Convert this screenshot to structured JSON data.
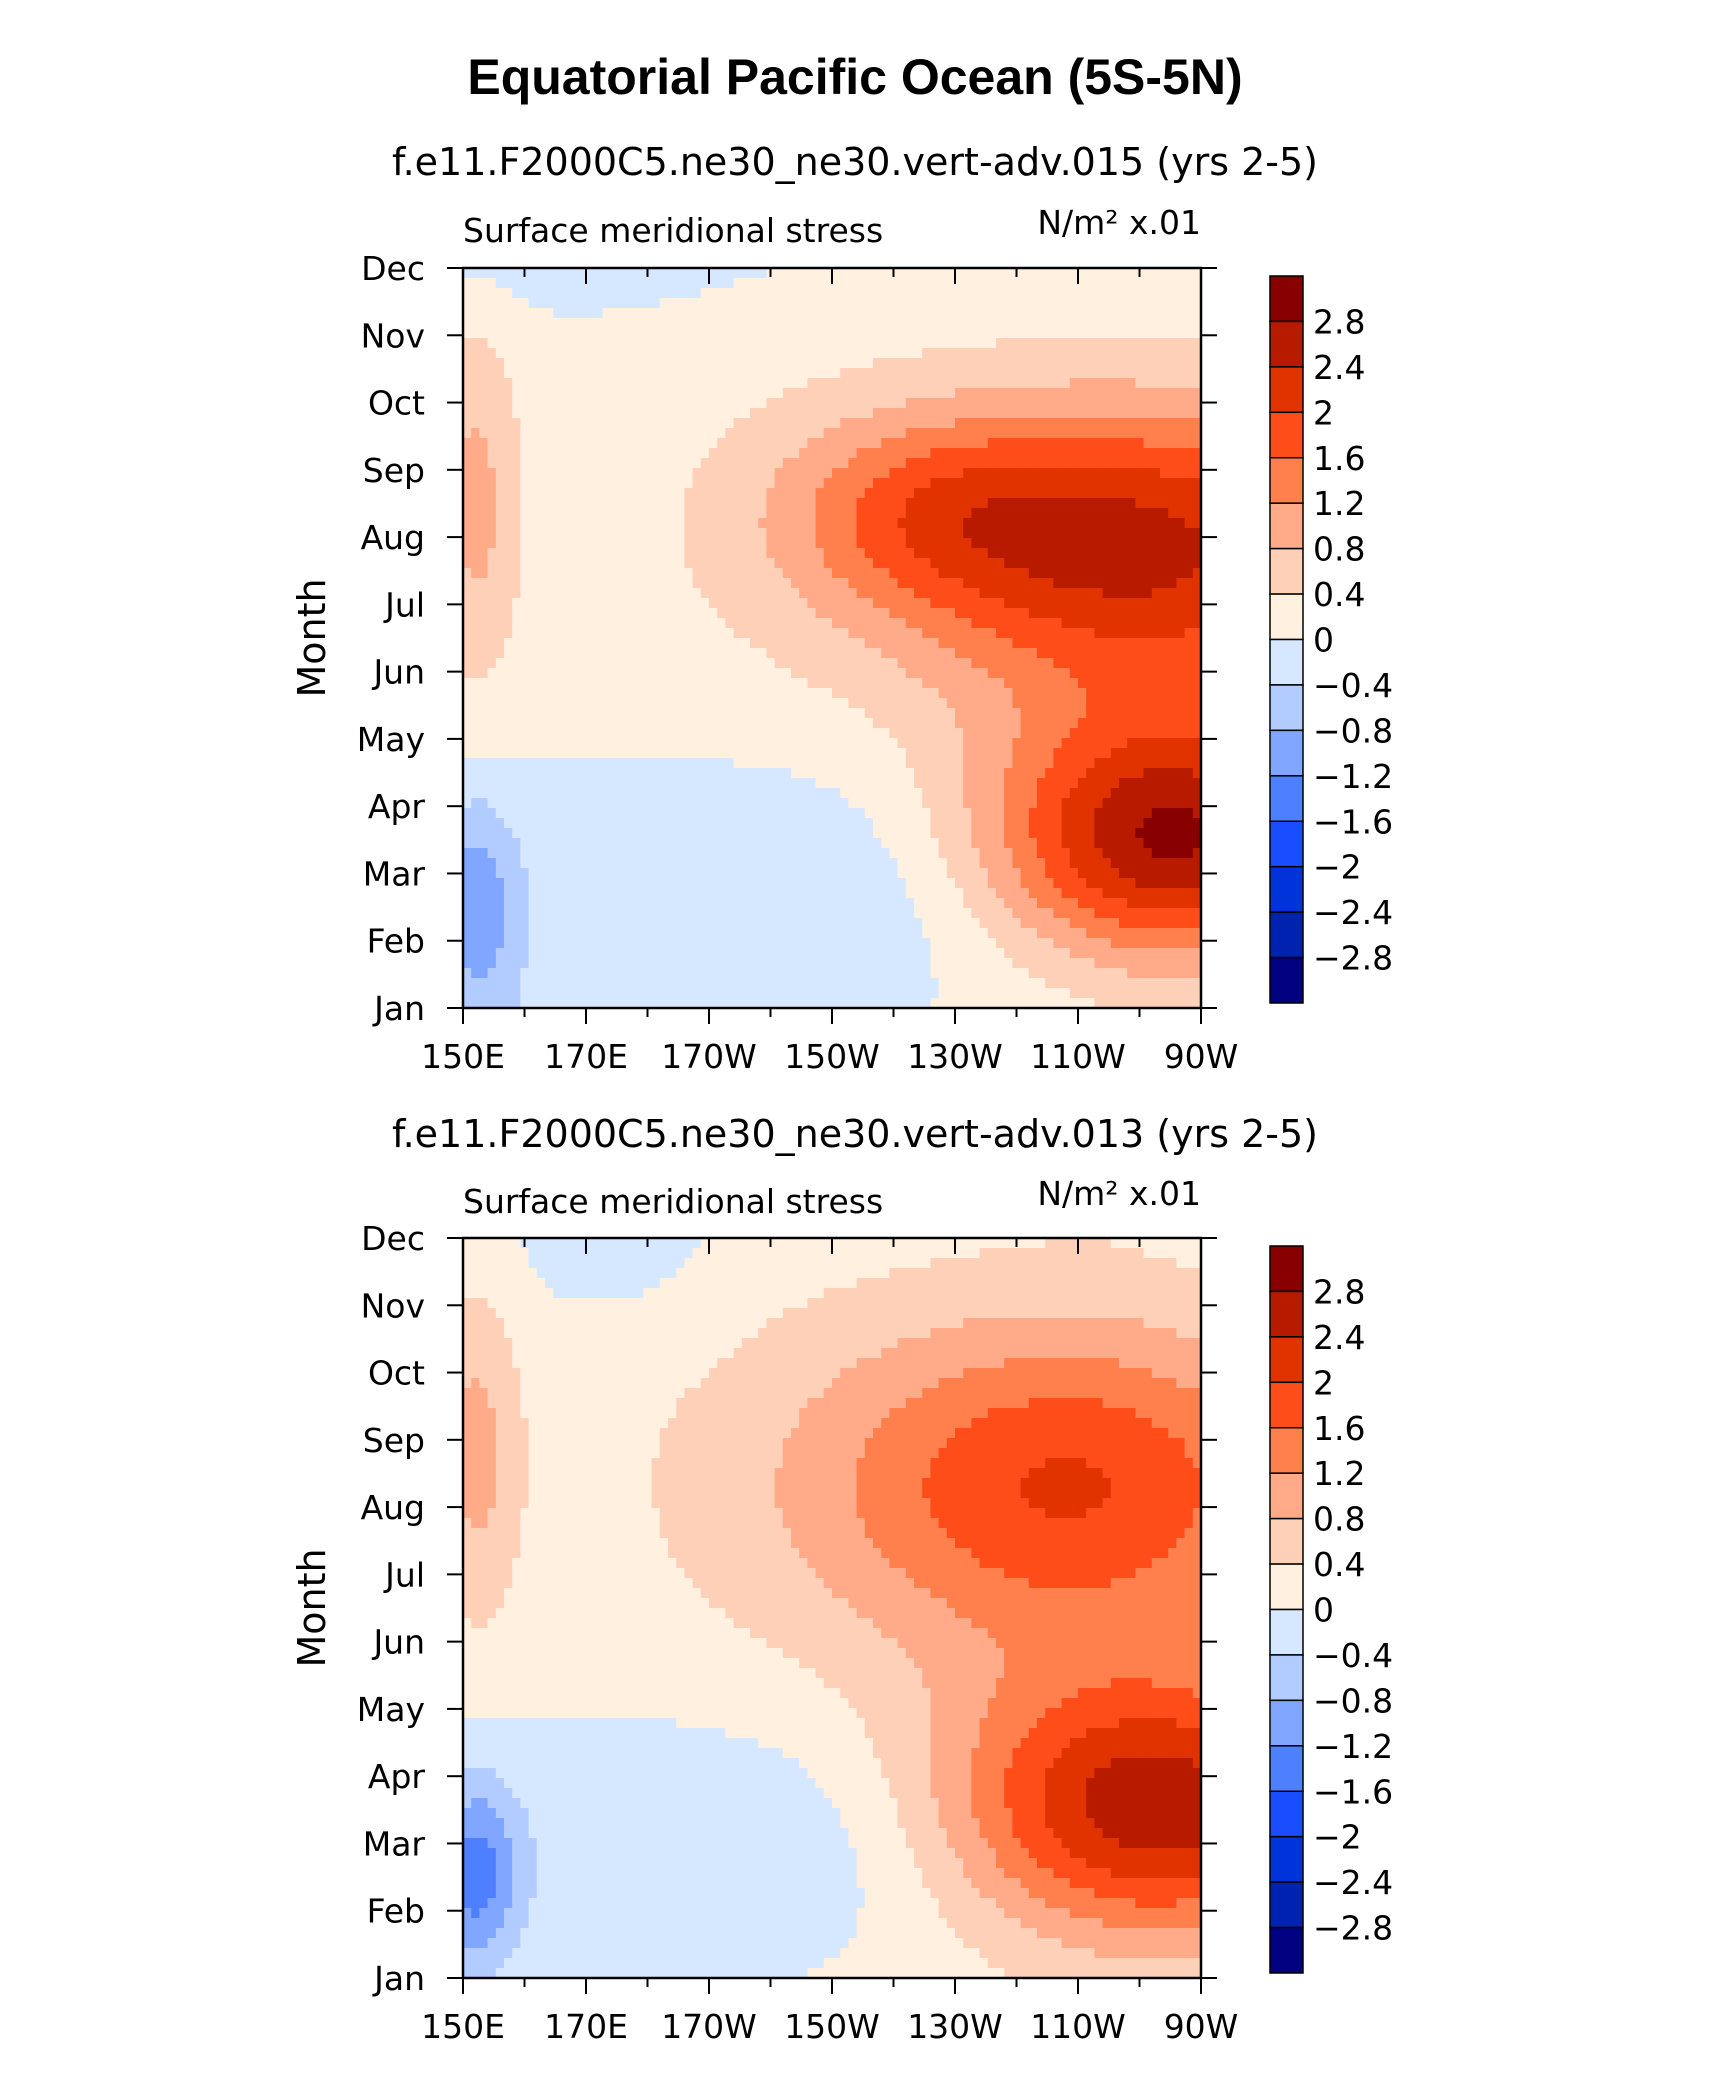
{
  "title": "Equatorial Pacific Ocean (5S-5N)",
  "colors": [
    "#000080",
    "#0022b0",
    "#0033d9",
    "#1a4dff",
    "#4d7fff",
    "#80a6ff",
    "#b3ccff",
    "#d6e8ff",
    "#fff0e0",
    "#ffd0b8",
    "#ffaa88",
    "#ff7f4d",
    "#ff4d1a",
    "#e03300",
    "#b81a00",
    "#880000"
  ],
  "chart_data": [
    {
      "type": "heatmap",
      "title": "f.e11.F2000C5.ne30_ne30.vert-adv.015 (yrs 2-5)",
      "subtitle_left": "Surface meridional stress",
      "units": "N/m² x.01",
      "xlabel": "",
      "ylabel": "Month",
      "x_ticks": [
        "150E",
        "170E",
        "170W",
        "150W",
        "130W",
        "110W",
        "90W"
      ],
      "y_ticks": [
        "Jan",
        "Feb",
        "Mar",
        "Apr",
        "May",
        "Jun",
        "Jul",
        "Aug",
        "Sep",
        "Oct",
        "Nov",
        "Dec"
      ],
      "colorbar_labels": [
        "2.8",
        "2.4",
        "2",
        "1.6",
        "1.2",
        "0.8",
        "0.4",
        "0",
        "−0.4",
        "−0.8",
        "−1.2",
        "−1.6",
        "−2",
        "−2.4",
        "−2.8"
      ],
      "levels": [
        -2.8,
        -2.4,
        -2,
        -1.6,
        -1.2,
        -0.8,
        -0.4,
        0,
        0.4,
        0.8,
        1.2,
        1.6,
        2,
        2.4,
        2.8
      ],
      "features": [
        {
          "lon": 265,
          "month": 3,
          "amp": 2.9,
          "slon": 22,
          "smon": 1.3
        },
        {
          "lon": 262,
          "month": 7.3,
          "amp": 2.4,
          "slon": 30,
          "smon": 1.6
        },
        {
          "lon": 225,
          "month": 7.9,
          "amp": 0.9,
          "slon": 18,
          "smon": 1.0
        },
        {
          "lon": 152,
          "month": 8,
          "amp": 0.8,
          "slon": 5,
          "smon": 2.0
        },
        {
          "lon": 152,
          "month": 2,
          "amp": -1.0,
          "slon": 5,
          "smon": 1.2
        },
        {
          "lon": 200,
          "month": 7.5,
          "amp": 0.25,
          "slon": 40,
          "smon": 3.0
        },
        {
          "lon": 170,
          "month": 12,
          "amp": -0.3,
          "slon": 20,
          "smon": 0.8
        },
        {
          "lon": 205,
          "month": 2.3,
          "amp": -0.5,
          "slon": 35,
          "smon": 1.3
        }
      ]
    },
    {
      "type": "heatmap",
      "title": "f.e11.F2000C5.ne30_ne30.vert-adv.013 (yrs 2-5)",
      "subtitle_left": "Surface meridional stress",
      "units": "N/m² x.01",
      "xlabel": "",
      "ylabel": "Month",
      "x_ticks": [
        "150E",
        "170E",
        "170W",
        "150W",
        "130W",
        "110W",
        "90W"
      ],
      "y_ticks": [
        "Jan",
        "Feb",
        "Mar",
        "Apr",
        "May",
        "Jun",
        "Jul",
        "Aug",
        "Sep",
        "Oct",
        "Nov",
        "Dec"
      ],
      "colorbar_labels": [
        "2.8",
        "2.4",
        "2",
        "1.6",
        "1.2",
        "0.8",
        "0.4",
        "0",
        "−0.4",
        "−0.8",
        "−1.2",
        "−1.6",
        "−2",
        "−2.4",
        "−2.8"
      ],
      "levels": [
        -2.8,
        -2.4,
        -2,
        -1.6,
        -1.2,
        -0.8,
        -0.4,
        0,
        0.4,
        0.8,
        1.2,
        1.6,
        2,
        2.4,
        2.8
      ],
      "features": [
        {
          "lon": 262,
          "month": 3,
          "amp": 2.7,
          "slon": 25,
          "smon": 1.4
        },
        {
          "lon": 250,
          "month": 7.8,
          "amp": 1.9,
          "slon": 30,
          "smon": 1.8
        },
        {
          "lon": 152,
          "month": 8.3,
          "amp": 0.8,
          "slon": 5,
          "smon": 1.8
        },
        {
          "lon": 152,
          "month": 2,
          "amp": -1.3,
          "slon": 5,
          "smon": 1.0
        },
        {
          "lon": 200,
          "month": 8,
          "amp": 0.3,
          "slon": 40,
          "smon": 3.0
        },
        {
          "lon": 175,
          "month": 11.5,
          "amp": -0.3,
          "slon": 12,
          "smon": 1.0
        },
        {
          "lon": 200,
          "month": 2.5,
          "amp": -0.5,
          "slon": 35,
          "smon": 1.3
        }
      ]
    }
  ]
}
